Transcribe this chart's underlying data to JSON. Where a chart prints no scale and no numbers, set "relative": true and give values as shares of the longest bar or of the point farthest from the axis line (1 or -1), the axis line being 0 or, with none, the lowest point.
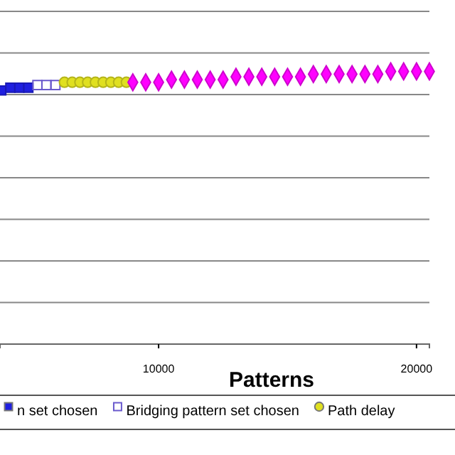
{
  "chart_data": {
    "type": "scatter",
    "relative": true,
    "xlabel": "Patterns",
    "xlim": [
      3850,
      20500
    ],
    "xticks": [
      10000,
      20000
    ],
    "grid": true,
    "legend": "bottom",
    "tick_labels": "x",
    "series": [
      {
        "name": "n set chosen",
        "color": "#1f1fe0",
        "marker": "square",
        "x": [
          3900,
          4250,
          4600,
          4950
        ],
        "values": [
          0.93,
          0.94,
          0.94,
          0.94
        ]
      },
      {
        "name": "Bridging pattern set chosen",
        "color": "#6a5acd",
        "marker": "square",
        "x": [
          5300,
          5650,
          6000
        ],
        "values": [
          0.95,
          0.95,
          0.95
        ]
      },
      {
        "name": "Path delay",
        "color": "#e0e020",
        "marker": "circle",
        "x": [
          6350,
          6650,
          6950,
          7250,
          7550,
          7850,
          8150,
          8450,
          8750
        ],
        "values": [
          0.96,
          0.96,
          0.96,
          0.96,
          0.96,
          0.96,
          0.96,
          0.96,
          0.96
        ]
      },
      {
        "color": "#ff00ff",
        "marker": "diamond",
        "x": [
          9000,
          9500,
          10000,
          10500,
          11000,
          11500,
          12000,
          12500,
          13000,
          13500,
          14000,
          14500,
          15000,
          15500,
          16000,
          16500,
          17000,
          17500,
          18000,
          18500,
          19000,
          19500,
          20000,
          20500
        ],
        "values": [
          0.96,
          0.96,
          0.96,
          0.97,
          0.97,
          0.97,
          0.97,
          0.97,
          0.98,
          0.98,
          0.98,
          0.98,
          0.98,
          0.98,
          0.99,
          0.99,
          0.99,
          0.99,
          0.99,
          0.99,
          1.0,
          1.0,
          1.0,
          1.0
        ]
      }
    ]
  }
}
